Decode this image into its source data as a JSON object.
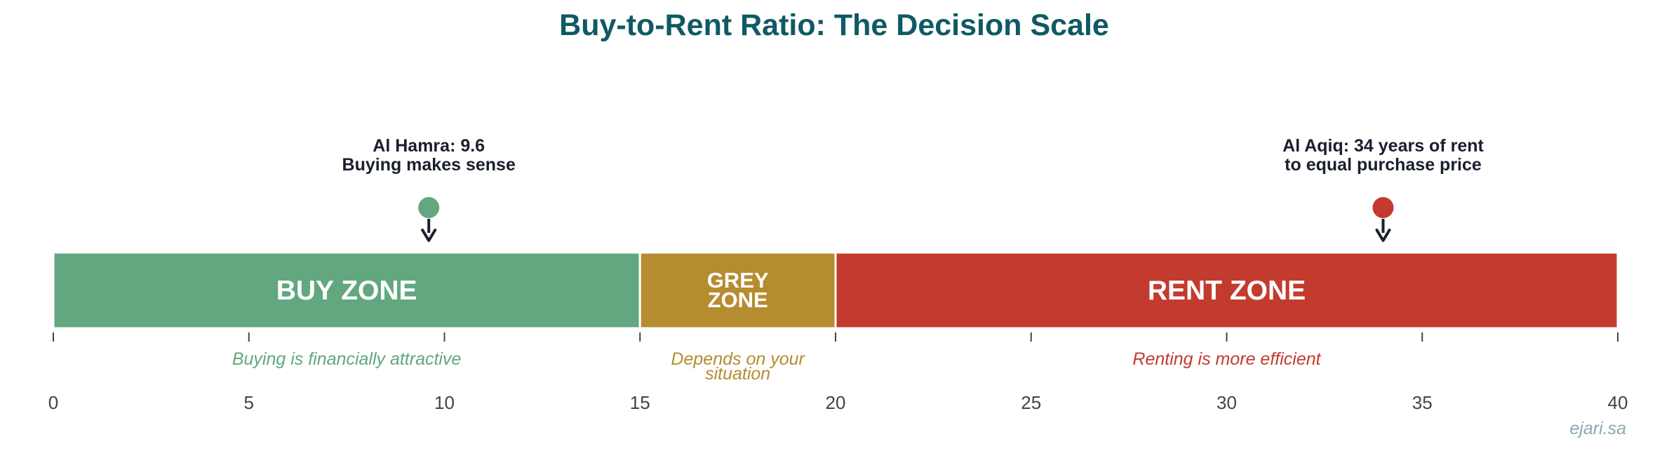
{
  "chart_data": {
    "type": "bar",
    "title": "Buy-to-Rent Ratio: The Decision Scale",
    "xlim": [
      0,
      40
    ],
    "ticks": [
      0,
      5,
      10,
      15,
      20,
      25,
      30,
      35,
      40
    ],
    "zones": [
      {
        "name": "buy",
        "start": 0,
        "end": 15,
        "label_lines": [
          "BUY ZONE"
        ],
        "desc_lines": [
          "Buying is financially attractive"
        ],
        "color": "#62a77f"
      },
      {
        "name": "grey",
        "start": 15,
        "end": 20,
        "label_lines": [
          "GREY",
          "ZONE"
        ],
        "desc_lines": [
          "Depends on your",
          "situation"
        ],
        "color": "#b58c30"
      },
      {
        "name": "rent",
        "start": 20,
        "end": 40,
        "label_lines": [
          "RENT ZONE"
        ],
        "desc_lines": [
          "Renting is more efficient"
        ],
        "color": "#c23b2e"
      }
    ],
    "markers": [
      {
        "name": "al-hamra",
        "value": 9.6,
        "label_lines": [
          "Al Hamra: 9.6",
          "Buying makes sense"
        ],
        "color": "#62a77f"
      },
      {
        "name": "al-aqiq",
        "value": 34,
        "label_lines": [
          "Al Aqiq: 34 years of rent",
          "to equal purchase price"
        ],
        "color": "#c23b2e"
      }
    ],
    "colors": {
      "title": "#0f5a63",
      "arrow": "#1a1f2e",
      "tick": "#444444"
    }
  },
  "watermark": "ejari.sa"
}
